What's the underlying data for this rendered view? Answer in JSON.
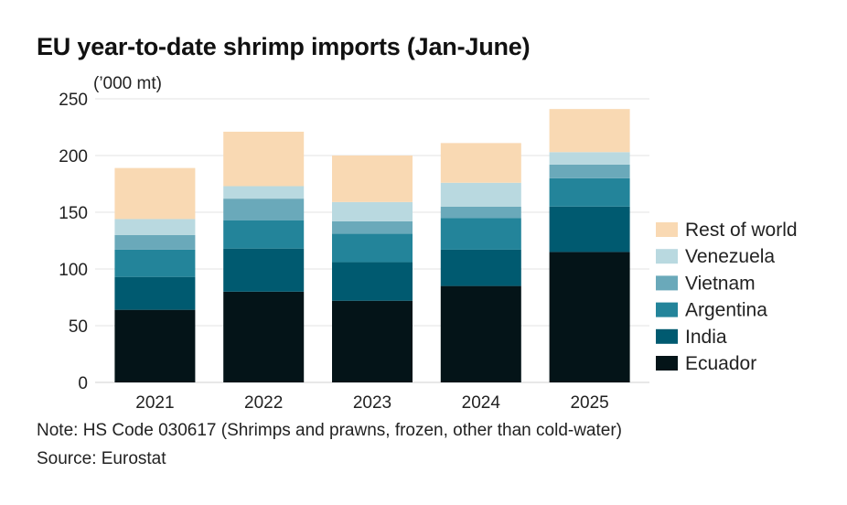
{
  "title": "EU year-to-date shrimp imports (Jan-June)",
  "note": "Note: HS Code 030617 (Shrimps and prawns, frozen, other than cold-water)",
  "source": "Source: Eurostat",
  "chart_data": {
    "type": "bar",
    "stacked": true,
    "title": "EU year-to-date shrimp imports (Jan-June)",
    "unit_label": "(’000 mt)",
    "xlabel": "",
    "ylabel": "",
    "ylim": [
      0,
      250
    ],
    "yticks": [
      0,
      50,
      100,
      150,
      200,
      250
    ],
    "grid": true,
    "legend_position": "right",
    "categories": [
      "2021",
      "2022",
      "2023",
      "2024",
      "2025"
    ],
    "series": [
      {
        "name": "Ecuador",
        "color": "#041418",
        "values": [
          64,
          80,
          72,
          85,
          115
        ]
      },
      {
        "name": "India",
        "color": "#005a70",
        "values": [
          29,
          38,
          34,
          32,
          40
        ]
      },
      {
        "name": "Argentina",
        "color": "#23849a",
        "values": [
          24,
          25,
          25,
          28,
          25
        ]
      },
      {
        "name": "Vietnam",
        "color": "#6aa9ba",
        "values": [
          13,
          19,
          11,
          10,
          12
        ]
      },
      {
        "name": "Venezuela",
        "color": "#b9d9e0",
        "values": [
          14,
          11,
          17,
          21,
          11
        ]
      },
      {
        "name": "Rest of world",
        "color": "#f9d9b3",
        "values": [
          45,
          48,
          41,
          35,
          38
        ]
      }
    ]
  }
}
